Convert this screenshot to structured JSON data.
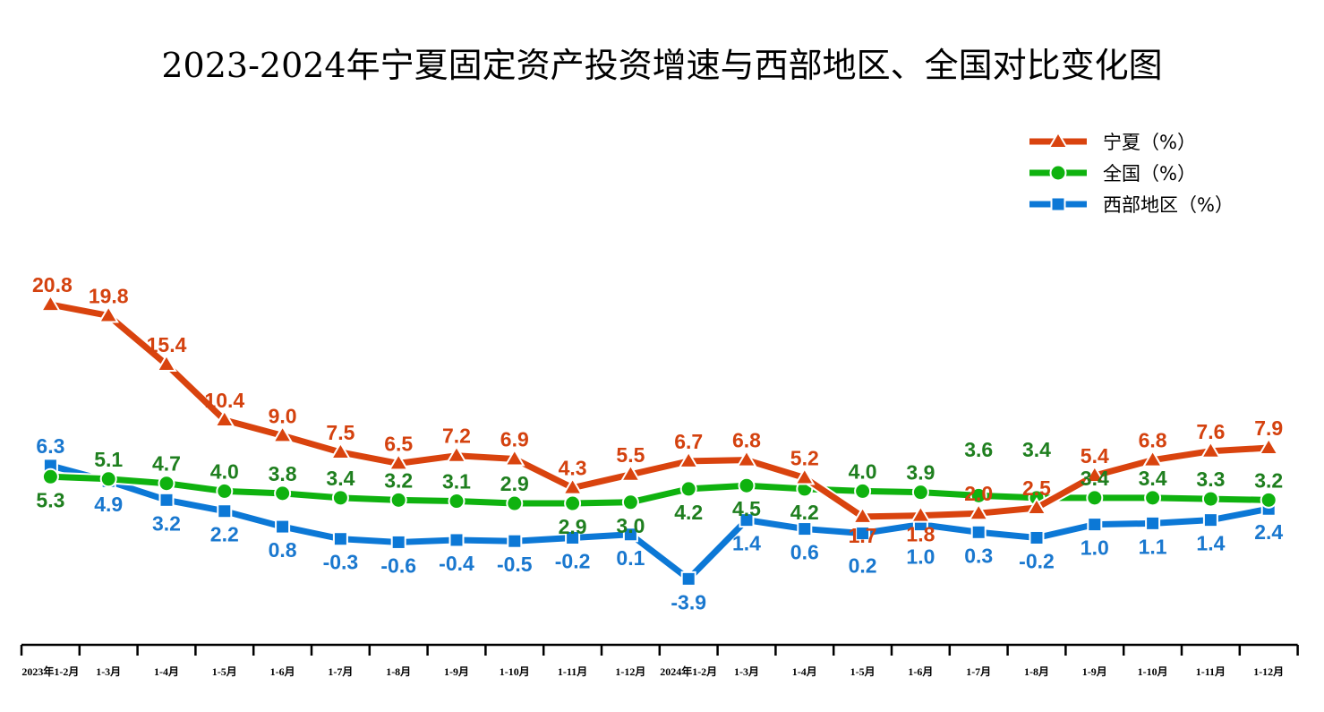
{
  "chart_data": {
    "type": "line",
    "title": "2023-2024年宁夏固定资产投资增速与西部地区、全国对比变化图",
    "xlabel": "",
    "ylabel": "",
    "ylim": [
      -5,
      22
    ],
    "grid": false,
    "legend_position": "top-right",
    "categories": [
      "2023年1-2月",
      "1-3月",
      "1-4月",
      "1-5月",
      "1-6月",
      "1-7月",
      "1-8月",
      "1-9月",
      "1-10月",
      "1-11月",
      "1-12月",
      "2024年1-2月",
      "1-3月",
      "1-4月",
      "1-5月",
      "1-6月",
      "1-7月",
      "1-8月",
      "1-9月",
      "1-10月",
      "1-11月",
      "1-12月"
    ],
    "series": [
      {
        "name": "宁夏（%）",
        "color": "#d9430e",
        "label_color": "#d4420f",
        "marker": "triangle",
        "values": [
          20.8,
          19.8,
          15.4,
          10.4,
          9.0,
          7.5,
          6.5,
          7.2,
          6.9,
          4.3,
          5.5,
          6.7,
          6.8,
          5.2,
          1.7,
          1.8,
          2.0,
          2.5,
          5.4,
          6.8,
          7.6,
          7.9
        ]
      },
      {
        "name": "全国（%）",
        "color": "#0fb20f",
        "label_color": "#1f7f1f",
        "marker": "circle",
        "values": [
          5.3,
          5.1,
          4.7,
          4.0,
          3.8,
          3.4,
          3.2,
          3.1,
          2.9,
          2.9,
          3.0,
          4.2,
          4.5,
          4.2,
          4.0,
          3.9,
          3.6,
          3.4,
          3.4,
          3.4,
          3.3,
          3.2
        ]
      },
      {
        "name": "西部地区（%）",
        "color": "#0c78d6",
        "label_color": "#1a78cf",
        "marker": "square",
        "values": [
          6.3,
          4.9,
          3.2,
          2.2,
          0.8,
          -0.3,
          -0.6,
          -0.4,
          -0.5,
          -0.2,
          0.1,
          -3.9,
          1.4,
          0.6,
          0.2,
          1.0,
          0.3,
          -0.2,
          1.0,
          1.1,
          1.4,
          2.4
        ]
      }
    ]
  }
}
